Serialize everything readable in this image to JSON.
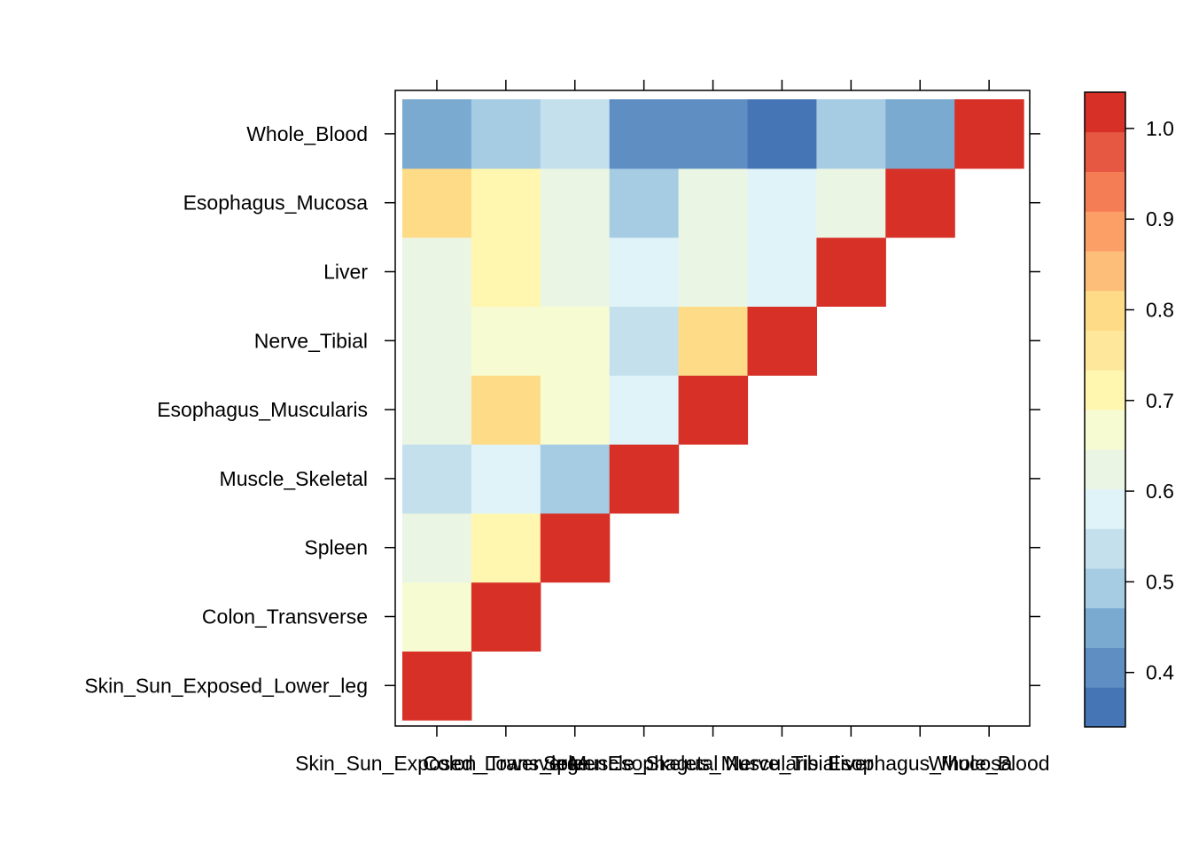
{
  "chart_data": {
    "type": "heatmap",
    "title": "",
    "xlabel": "",
    "ylabel": "",
    "categories": [
      "Skin_Sun_Exposed_Lower_leg",
      "Colon_Transverse",
      "Spleen",
      "Muscle_Skeletal",
      "Esophagus_Muscularis",
      "Nerve_Tibial",
      "Liver",
      "Esophagus_Mucosa",
      "Whole_Blood"
    ],
    "matrix": [
      [
        1.0,
        null,
        null,
        null,
        null,
        null,
        null,
        null,
        null
      ],
      [
        0.68,
        1.0,
        null,
        null,
        null,
        null,
        null,
        null,
        null
      ],
      [
        0.63,
        0.73,
        1.0,
        null,
        null,
        null,
        null,
        null,
        null
      ],
      [
        0.53,
        0.58,
        0.51,
        1.0,
        null,
        null,
        null,
        null,
        null
      ],
      [
        0.63,
        0.78,
        0.68,
        0.58,
        1.0,
        null,
        null,
        null,
        null
      ],
      [
        0.63,
        0.68,
        0.68,
        0.53,
        0.78,
        1.0,
        null,
        null,
        null
      ],
      [
        0.63,
        0.73,
        0.63,
        0.58,
        0.63,
        0.58,
        1.0,
        null,
        null
      ],
      [
        0.78,
        0.73,
        0.63,
        0.51,
        0.63,
        0.58,
        0.63,
        1.0,
        null
      ],
      [
        0.46,
        0.51,
        0.53,
        0.41,
        0.41,
        0.36,
        0.51,
        0.46,
        1.0
      ]
    ],
    "colorbar": {
      "range": [
        0.34,
        1.04
      ],
      "tick_labels": [
        "1.0",
        "0.9",
        "0.8",
        "0.7",
        "0.6",
        "0.5",
        "0.4"
      ],
      "tick_values": [
        1.0,
        0.9,
        0.8,
        0.7,
        0.6,
        0.5,
        0.4
      ],
      "colors": [
        "#4575B4",
        "#5E8EC2",
        "#7AAAD0",
        "#A6CCE3",
        "#C4E0EC",
        "#E0F3F8",
        "#EBF5E3",
        "#F7FBD2",
        "#FFF7B0",
        "#FEE79B",
        "#FEDB87",
        "#FDBE7A",
        "#FC9F67",
        "#F57D55",
        "#E75843",
        "#D73027"
      ]
    }
  }
}
